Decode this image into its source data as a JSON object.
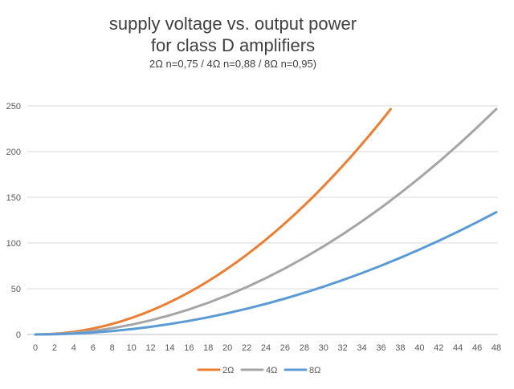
{
  "chart_data": {
    "type": "line",
    "title_line1": "supply voltage vs. output power",
    "title_line2": "for class D amplifiers",
    "subtitle": "2Ω n=0,75 / 4Ω n=0,88 / 8Ω n=0,95)",
    "xlabel": "",
    "ylabel": "",
    "xlim": [
      0,
      48
    ],
    "ylim": [
      0,
      250
    ],
    "x_ticks": [
      0,
      2,
      4,
      6,
      8,
      10,
      12,
      14,
      16,
      18,
      20,
      22,
      24,
      26,
      28,
      30,
      32,
      34,
      36,
      38,
      40,
      42,
      44,
      46,
      48
    ],
    "y_ticks": [
      0,
      50,
      100,
      150,
      200,
      250
    ],
    "grid": true,
    "legend_position": "bottom",
    "series": [
      {
        "name": "2Ω",
        "color": "#ed7d31",
        "x": [
          0,
          1,
          2,
          3,
          4,
          5,
          6,
          7,
          8,
          9,
          10,
          11,
          12,
          13,
          14,
          15,
          16,
          17,
          18,
          19,
          20,
          21,
          22,
          23,
          24,
          25,
          26,
          27,
          28,
          29,
          30,
          31,
          32,
          33,
          34,
          35,
          36,
          37
        ],
        "y": [
          0,
          0.18,
          0.72,
          1.62,
          2.88,
          4.5,
          6.48,
          8.82,
          11.52,
          14.58,
          18,
          21.78,
          25.92,
          30.42,
          35.28,
          40.5,
          46.08,
          52.02,
          58.32,
          64.98,
          72,
          79.38,
          87.12,
          95.22,
          103.68,
          112.5,
          121.68,
          131.22,
          141.12,
          151.38,
          162,
          172.98,
          184.32,
          196.02,
          208.08,
          220.5,
          233.28,
          246.42
        ]
      },
      {
        "name": "4Ω",
        "color": "#a5a5a5",
        "x": [
          0,
          2,
          4,
          6,
          8,
          10,
          12,
          14,
          16,
          18,
          20,
          22,
          24,
          26,
          28,
          30,
          32,
          34,
          36,
          38,
          40,
          42,
          44,
          46,
          48
        ],
        "y": [
          0,
          0.43,
          1.71,
          3.85,
          6.85,
          10.7,
          15.41,
          20.98,
          27.4,
          34.67,
          42.8,
          51.79,
          61.63,
          72.33,
          83.89,
          96.3,
          109.57,
          123.69,
          138.67,
          154.51,
          171.2,
          188.75,
          207.15,
          226.41,
          246.53
        ]
      },
      {
        "name": "8Ω",
        "color": "#5b9bd5",
        "x": [
          0,
          2,
          4,
          6,
          8,
          10,
          12,
          14,
          16,
          18,
          20,
          22,
          24,
          26,
          28,
          30,
          32,
          34,
          36,
          38,
          40,
          42,
          44,
          46,
          48
        ],
        "y": [
          0,
          0.23,
          0.93,
          2.09,
          3.72,
          5.81,
          8.36,
          11.38,
          14.86,
          18.81,
          23.22,
          28.1,
          33.44,
          39.25,
          45.52,
          52.25,
          59.45,
          67.11,
          75.24,
          83.83,
          92.89,
          102.41,
          112.39,
          122.84,
          133.76
        ]
      }
    ]
  }
}
